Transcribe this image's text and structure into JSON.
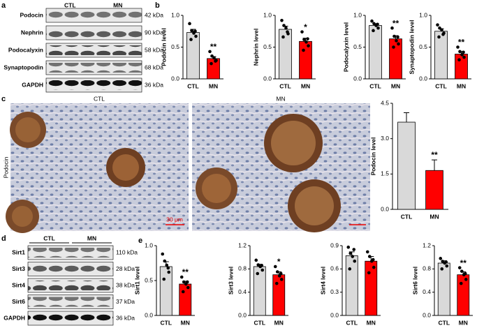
{
  "panels": {
    "letters": [
      "a",
      "b",
      "c",
      "d",
      "e"
    ],
    "histology": {
      "titles": [
        "CTL",
        "MN"
      ],
      "stain": "Podocin",
      "scale": "30 μm"
    }
  },
  "blots": [
    {
      "groups": [
        "CTL",
        "MN"
      ],
      "rows": [
        {
          "label": "Podocin",
          "kda": "42 kDa"
        },
        {
          "label": "Nephrin",
          "kda": "90 kDa"
        },
        {
          "label": "Podocalyxin",
          "kda": "58 kDa"
        },
        {
          "label": "Synaptopodin",
          "kda": "68 kDa"
        },
        {
          "label": "GAPDH",
          "kda": "36 kDa"
        }
      ]
    },
    {
      "groups": [
        "CTL",
        "MN"
      ],
      "rows": [
        {
          "label": "Sirt1",
          "kda": "110 kDa"
        },
        {
          "label": "Sirt3",
          "kda": "28 kDa"
        },
        {
          "label": "Sirt4",
          "kda": "38 kDa"
        },
        {
          "label": "Sirt6",
          "kda": "37 kDa"
        },
        {
          "label": "GAPDH",
          "kda": "36 kDa"
        }
      ]
    }
  ],
  "chart_data": [
    {
      "type": "bar",
      "y_label": "Podocin level",
      "categories": [
        "CTL",
        "MN"
      ],
      "colors": [
        "#d9d9d9",
        "#ff0000"
      ],
      "values": [
        0.73,
        0.32
      ],
      "errors": [
        0.05,
        0.03
      ],
      "points": [
        [
          0.87,
          0.76,
          0.72,
          0.67,
          0.62,
          0.75
        ],
        [
          0.43,
          0.36,
          0.33,
          0.29,
          0.24,
          0.28
        ]
      ],
      "ylim": [
        0,
        1.0
      ],
      "yticks": [
        {
          "value": 0,
          "label": "0.0"
        },
        {
          "value": 0.5,
          "label": "0.5"
        },
        {
          "value": 1.0,
          "label": "1.0"
        }
      ],
      "annotations": [
        {
          "x": "MN",
          "text": "**"
        }
      ]
    },
    {
      "type": "bar",
      "y_label": "Nephrin level",
      "categories": [
        "CTL",
        "MN"
      ],
      "colors": [
        "#d9d9d9",
        "#ff0000"
      ],
      "values": [
        0.78,
        0.59
      ],
      "errors": [
        0.05,
        0.05
      ],
      "points": [
        [
          0.92,
          0.84,
          0.8,
          0.71,
          0.66,
          0.74
        ],
        [
          0.74,
          0.62,
          0.58,
          0.52,
          0.45,
          0.63
        ]
      ],
      "ylim": [
        0,
        1.0
      ],
      "yticks": [
        {
          "value": 0,
          "label": "0.0"
        },
        {
          "value": 0.5,
          "label": "0.5"
        },
        {
          "value": 1.0,
          "label": "1.0"
        }
      ],
      "annotations": [
        {
          "x": "MN",
          "text": "*"
        }
      ]
    },
    {
      "type": "bar",
      "y_label": "Podocalyxin level",
      "categories": [
        "CTL",
        "MN"
      ],
      "colors": [
        "#d9d9d9",
        "#ff0000"
      ],
      "values": [
        0.84,
        0.63
      ],
      "errors": [
        0.03,
        0.05
      ],
      "points": [
        [
          0.91,
          0.87,
          0.84,
          0.8,
          0.76,
          0.86
        ],
        [
          0.8,
          0.67,
          0.6,
          0.55,
          0.5,
          0.66
        ]
      ],
      "ylim": [
        0,
        1.0
      ],
      "yticks": [
        {
          "value": 0,
          "label": "0.0"
        },
        {
          "value": 0.5,
          "label": "0.5"
        },
        {
          "value": 1.0,
          "label": "1.0"
        }
      ],
      "annotations": [
        {
          "x": "MN",
          "text": "**"
        }
      ]
    },
    {
      "type": "bar",
      "y_label": "Synaptopodin level",
      "categories": [
        "CTL",
        "MN"
      ],
      "colors": [
        "#d9d9d9",
        "#ff0000"
      ],
      "values": [
        0.75,
        0.39
      ],
      "errors": [
        0.04,
        0.04
      ],
      "points": [
        [
          0.85,
          0.8,
          0.77,
          0.72,
          0.66,
          0.7
        ],
        [
          0.5,
          0.43,
          0.38,
          0.34,
          0.3,
          0.42
        ]
      ],
      "ylim": [
        0,
        1.0
      ],
      "yticks": [
        {
          "value": 0,
          "label": "0.0"
        },
        {
          "value": 0.5,
          "label": "0.5"
        },
        {
          "value": 1.0,
          "label": "1.0"
        }
      ],
      "annotations": [
        {
          "x": "MN",
          "text": "**"
        }
      ]
    },
    {
      "type": "bar",
      "y_label": "Podocin level",
      "categories": [
        "CTL",
        "MN"
      ],
      "colors": [
        "#d9d9d9",
        "#ff0000"
      ],
      "values": [
        3.7,
        1.65
      ],
      "errors": [
        0.4,
        0.45
      ],
      "ylim": [
        0,
        4.5
      ],
      "yticks": [
        {
          "value": 0,
          "label": "0.0"
        },
        {
          "value": 1.5,
          "label": "1.5"
        },
        {
          "value": 3.0,
          "label": "3.0"
        },
        {
          "value": 4.5,
          "label": "4.5"
        }
      ],
      "annotations": [
        {
          "x": "MN",
          "text": "**"
        }
      ]
    },
    {
      "type": "bar",
      "y_label": "Sirt1 level",
      "categories": [
        "CTL",
        "MN"
      ],
      "colors": [
        "#d9d9d9",
        "#ff0000"
      ],
      "values": [
        0.7,
        0.45
      ],
      "errors": [
        0.07,
        0.04
      ],
      "points": [
        [
          0.88,
          0.78,
          0.72,
          0.62,
          0.52,
          0.68
        ],
        [
          0.55,
          0.48,
          0.45,
          0.4,
          0.34,
          0.48
        ]
      ],
      "ylim": [
        0,
        1.0
      ],
      "yticks": [
        {
          "value": 0,
          "label": "0.0"
        },
        {
          "value": 0.5,
          "label": "0.5"
        },
        {
          "value": 1.0,
          "label": "1.0"
        }
      ],
      "annotations": [
        {
          "x": "MN",
          "text": "**"
        }
      ]
    },
    {
      "type": "bar",
      "y_label": "Sirt3 level",
      "categories": [
        "CTL",
        "MN"
      ],
      "colors": [
        "#d9d9d9",
        "#ff0000"
      ],
      "values": [
        0.84,
        0.7
      ],
      "errors": [
        0.04,
        0.05
      ],
      "points": [
        [
          0.95,
          0.87,
          0.84,
          0.78,
          0.72,
          0.86
        ],
        [
          0.84,
          0.75,
          0.68,
          0.62,
          0.55,
          0.72
        ]
      ],
      "ylim": [
        0,
        1.2
      ],
      "yticks": [
        {
          "value": 0,
          "label": "0.0"
        },
        {
          "value": 0.4,
          "label": "0.4"
        },
        {
          "value": 0.8,
          "label": "0.8"
        },
        {
          "value": 1.2,
          "label": "1.2"
        }
      ],
      "annotations": [
        {
          "x": "MN",
          "text": "*"
        }
      ]
    },
    {
      "type": "bar",
      "y_label": "Sirt4 level",
      "categories": [
        "CTL",
        "MN"
      ],
      "colors": [
        "#d9d9d9",
        "#ff0000"
      ],
      "values": [
        0.77,
        0.7
      ],
      "errors": [
        0.05,
        0.06
      ],
      "points": [
        [
          0.88,
          0.8,
          0.76,
          0.7,
          0.6,
          0.85
        ],
        [
          0.82,
          0.76,
          0.7,
          0.62,
          0.55,
          0.72
        ]
      ],
      "ylim": [
        0,
        0.9
      ],
      "yticks": [
        {
          "value": 0,
          "label": "0.0"
        },
        {
          "value": 0.3,
          "label": "0.3"
        },
        {
          "value": 0.6,
          "label": "0.6"
        },
        {
          "value": 0.9,
          "label": "0.9"
        }
      ]
    },
    {
      "type": "bar",
      "y_label": "Sirt6 level",
      "categories": [
        "CTL",
        "MN"
      ],
      "colors": [
        "#d9d9d9",
        "#ff0000"
      ],
      "values": [
        0.9,
        0.7
      ],
      "errors": [
        0.04,
        0.05
      ],
      "points": [
        [
          0.98,
          0.93,
          0.9,
          0.85,
          0.8,
          0.92
        ],
        [
          0.82,
          0.76,
          0.7,
          0.62,
          0.55,
          0.72
        ]
      ],
      "ylim": [
        0,
        1.2
      ],
      "yticks": [
        {
          "value": 0,
          "label": "0.0"
        },
        {
          "value": 0.4,
          "label": "0.4"
        },
        {
          "value": 0.8,
          "label": "0.8"
        },
        {
          "value": 1.2,
          "label": "1.2"
        }
      ],
      "annotations": [
        {
          "x": "MN",
          "text": "**"
        }
      ]
    }
  ]
}
